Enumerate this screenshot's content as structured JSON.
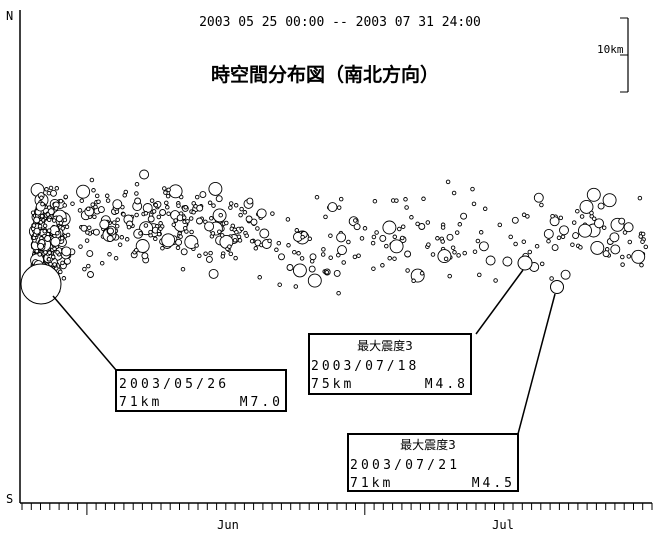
{
  "chart_data": {
    "type": "scatter",
    "title": "時空間分布図（南北方向）",
    "period": "2003 05 25 00:00 -- 2003 07 31 24:00",
    "y_axis": {
      "top_label": "N",
      "bottom_label": "S"
    },
    "scale_label": "10km",
    "x_axis": {
      "tick_labels": [
        "Jun",
        "Jul"
      ]
    },
    "callouts": [
      {
        "date": "2003/05/26",
        "depth": "71km",
        "mag": "M7.0"
      },
      {
        "header": "最大震度3",
        "date": "2003/07/18",
        "depth": "75km",
        "mag": "M4.8"
      },
      {
        "header": "最大震度3",
        "date": "2003/07/21",
        "depth": "71km",
        "mag": "M4.5"
      }
    ],
    "seed": 20030526
  }
}
